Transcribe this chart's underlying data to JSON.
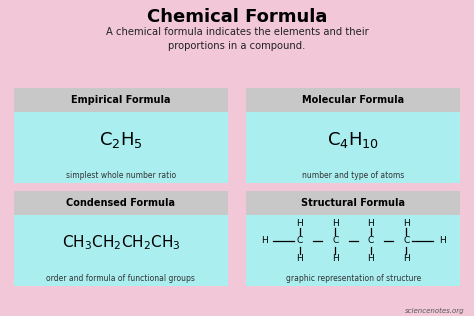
{
  "title": "Chemical Formula",
  "subtitle": "A chemical formula indicates the elements and their\nproportions in a compound.",
  "bg_color": "#f2c8d8",
  "header_bg": "#c8c8c8",
  "box_bg": "#aaeef0",
  "title_color": "#000000",
  "subtitle_color": "#222222",
  "watermark": "sciencenotes.org",
  "panels": [
    {
      "header": "Empirical Formula",
      "formula_type": "empirical",
      "description": "simplest whole number ratio",
      "col": 0,
      "row": 0
    },
    {
      "header": "Molecular Formula",
      "formula_type": "molecular",
      "description": "number and type of atoms",
      "col": 1,
      "row": 0
    },
    {
      "header": "Condensed Formula",
      "formula_type": "condensed",
      "description": "order and formula of functional groups",
      "col": 0,
      "row": 1
    },
    {
      "header": "Structural Formula",
      "formula_type": "structural",
      "description": "graphic representation of structure",
      "col": 1,
      "row": 1
    }
  ]
}
